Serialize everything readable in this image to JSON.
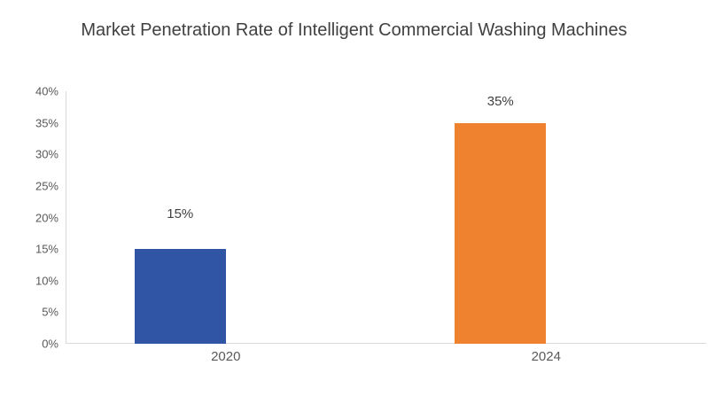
{
  "chart_data": {
    "type": "bar",
    "title": "Market Penetration Rate of Intelligent Commercial Washing Machines",
    "categories": [
      "2020",
      "2024"
    ],
    "values": [
      15,
      35
    ],
    "value_labels": [
      "15%",
      "35%"
    ],
    "xlabel": "",
    "ylabel": "",
    "ylim": [
      0,
      40
    ],
    "ytick_step": 5,
    "ytick_labels": [
      "0%",
      "5%",
      "10%",
      "15%",
      "20%",
      "25%",
      "30%",
      "35%",
      "40%"
    ],
    "bar_colors": [
      "#2F55A4",
      "#EF822F"
    ],
    "grid": false,
    "legend": false,
    "colors": {
      "axis_line": "#D9D9D9",
      "title_text": "#404040",
      "tick_text": "#595959",
      "data_label_text": "#404040",
      "background": "#FFFFFF"
    }
  }
}
